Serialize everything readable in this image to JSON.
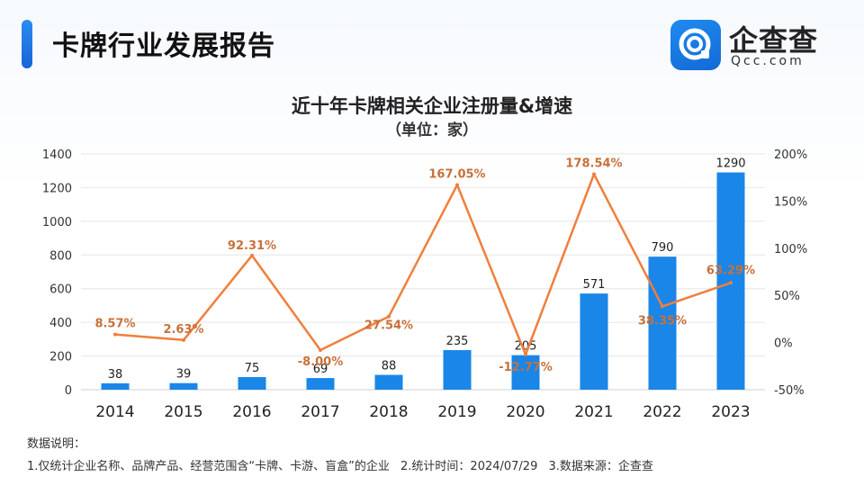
{
  "header": {
    "title": "卡牌行业发展报告"
  },
  "logo": {
    "name": "企查查",
    "domain": "Qcc.com"
  },
  "chart_data": {
    "type": "bar",
    "title": "近十年卡牌相关企业注册量&增速",
    "subtitle": "（单位：家）",
    "categories": [
      "2014",
      "2015",
      "2016",
      "2017",
      "2018",
      "2019",
      "2020",
      "2021",
      "2022",
      "2023"
    ],
    "series": [
      {
        "name": "注册量",
        "type": "bar",
        "axis": "left",
        "color": "#1a86e8",
        "values": [
          38,
          39,
          75,
          69,
          88,
          235,
          205,
          571,
          790,
          1290
        ],
        "labels": [
          "38",
          "39",
          "75",
          "69",
          "88",
          "235",
          "205",
          "571",
          "790",
          "1290"
        ]
      },
      {
        "name": "增速",
        "type": "line",
        "axis": "right",
        "color": "#f07f3c",
        "values": [
          8.57,
          2.63,
          92.31,
          -8.0,
          27.54,
          167.05,
          -12.77,
          178.54,
          38.35,
          63.29
        ],
        "labels": [
          "8.57%",
          "2.63%",
          "92.31%",
          "-8.00%",
          "27.54%",
          "167.05%",
          "-12.77%",
          "178.54%",
          "38.35%",
          "63.29%"
        ]
      }
    ],
    "ylim_left": [
      0,
      1400
    ],
    "yticks_left": [
      "0",
      "200",
      "400",
      "600",
      "800",
      "1000",
      "1200",
      "1400"
    ],
    "ylim_right": [
      -50,
      200
    ],
    "yticks_right": [
      "-50%",
      "0%",
      "50%",
      "100%",
      "150%",
      "200%"
    ],
    "grid": true
  },
  "notes": {
    "heading": "数据说明：",
    "items": [
      "1.仅统计企业名称、品牌产品、经营范围含“卡牌、卡游、盲盒”的企业",
      "2.统计时间：2024/07/29",
      "3.数据来源：企查查"
    ]
  },
  "colors": {
    "accent": "#1a86e8",
    "line": "#f07f3c",
    "label": "#c8703a",
    "grid": "#e6e6e6"
  }
}
